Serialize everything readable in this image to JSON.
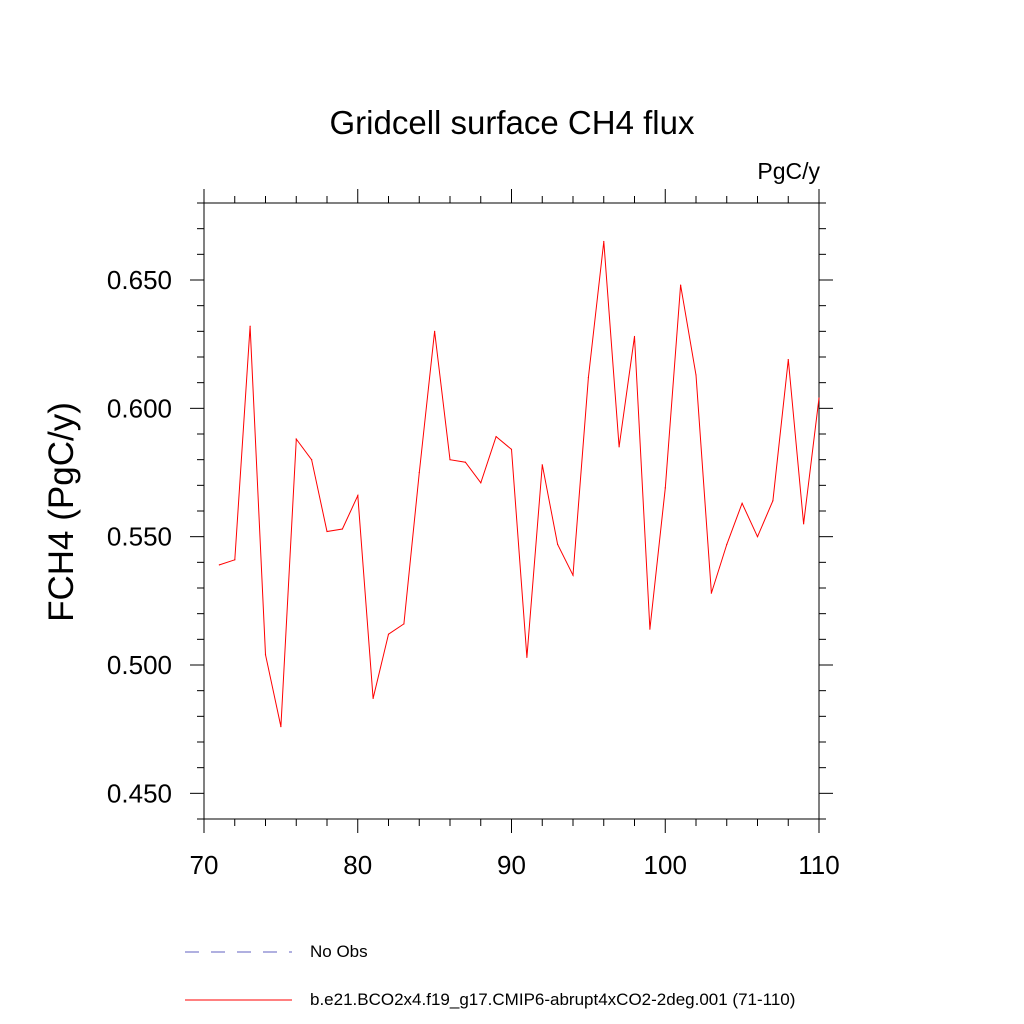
{
  "chart_data": {
    "type": "line",
    "title": "Gridcell surface CH4 flux",
    "units_label": "PgC/y",
    "xlabel": "",
    "ylabel": "FCH4  (PgC/y)",
    "xlim": [
      70,
      110
    ],
    "ylim": [
      0.44,
      0.68
    ],
    "x_ticks": [
      70,
      80,
      90,
      100,
      110
    ],
    "y_ticks": [
      0.45,
      0.5,
      0.55,
      0.6,
      0.65
    ],
    "y_tick_labels": [
      "0.450",
      "0.500",
      "0.550",
      "0.600",
      "0.650"
    ],
    "series": [
      {
        "name": "b.e21.BCO2x4.f19_g17.CMIP6-abrupt4xCO2-2deg.001 (71-110)",
        "color": "#ff0000",
        "style": "solid",
        "x": [
          71,
          72,
          73,
          74,
          75,
          76,
          77,
          78,
          79,
          80,
          81,
          82,
          83,
          84,
          85,
          86,
          87,
          88,
          89,
          90,
          91,
          92,
          93,
          94,
          95,
          96,
          97,
          98,
          99,
          100,
          101,
          102,
          103,
          104,
          105,
          106,
          107,
          108,
          109,
          110
        ],
        "values": [
          0.539,
          0.541,
          0.632,
          0.504,
          0.476,
          0.588,
          0.58,
          0.552,
          0.553,
          0.566,
          0.487,
          0.512,
          0.516,
          0.575,
          0.63,
          0.58,
          0.579,
          0.571,
          0.589,
          0.584,
          0.503,
          0.578,
          0.547,
          0.535,
          0.612,
          0.665,
          0.585,
          0.628,
          0.514,
          0.569,
          0.648,
          0.613,
          0.528,
          0.547,
          0.563,
          0.55,
          0.564,
          0.619,
          0.555,
          0.604
        ]
      }
    ],
    "legend": [
      {
        "label": "No Obs",
        "color": "#6060c0",
        "style": "dashed"
      },
      {
        "label": "b.e21.BCO2x4.f19_g17.CMIP6-abrupt4xCO2-2deg.001 (71-110)",
        "color": "#ff0000",
        "style": "solid"
      }
    ]
  }
}
